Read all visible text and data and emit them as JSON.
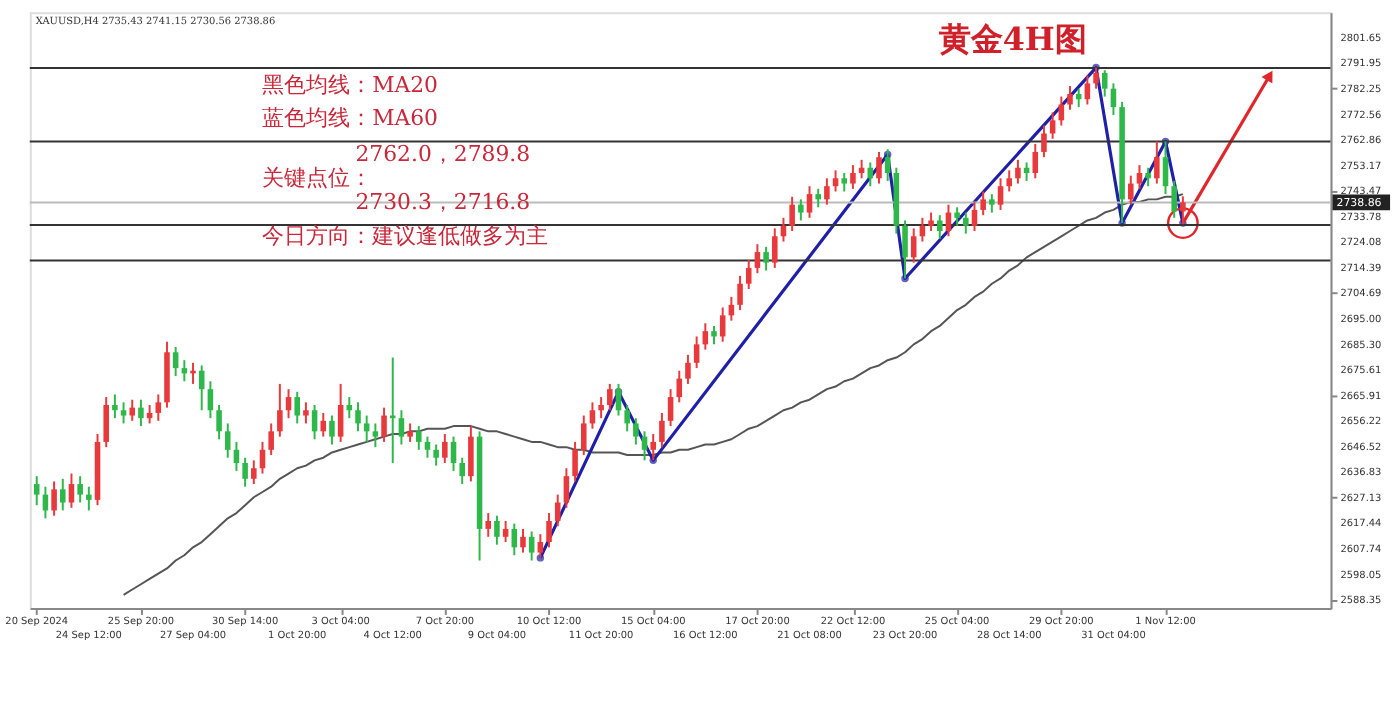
{
  "chart_data": {
    "type": "candlestick",
    "title": "黄金4H图",
    "annotations": [
      "XAUUSD,H4 2735.43 2741.15 2730.56 2738.86",
      "黑色均线：MA20",
      "蓝色均线：MA60",
      "2762.0，2789.8",
      "关键点位：",
      "2730.3，2716.8",
      "今日方向：建议逢低做多为主"
    ],
    "categories": [
      "20 Sep 2024",
      null,
      null,
      null,
      null,
      null,
      "24 Sep 12:00",
      null,
      null,
      null,
      null,
      null,
      "25 Sep 20:00",
      null,
      null,
      null,
      null,
      null,
      "27 Sep 04:00",
      null,
      null,
      null,
      null,
      null,
      "30 Sep 14:00",
      null,
      null,
      null,
      null,
      null,
      "1 Oct 20:00",
      null,
      null,
      null,
      null,
      "3 Oct 04:00",
      null,
      null,
      null,
      null,
      null,
      "4 Oct 12:00",
      null,
      null,
      null,
      null,
      null,
      "7 Oct 20:00",
      null,
      null,
      null,
      null,
      null,
      "9 Oct 04:00",
      null,
      null,
      null,
      null,
      null,
      "10 Oct 12:00",
      null,
      null,
      null,
      null,
      null,
      "11 Oct 20:00",
      null,
      null,
      null,
      null,
      null,
      "15 Oct 04:00",
      null,
      null,
      null,
      null,
      null,
      "16 Oct 12:00",
      null,
      null,
      null,
      null,
      null,
      "17 Oct 20:00",
      null,
      null,
      null,
      null,
      null,
      "21 Oct 08:00",
      null,
      null,
      null,
      null,
      "22 Oct 12:00",
      null,
      null,
      null,
      null,
      null,
      "23 Oct 20:00",
      null,
      null,
      null,
      null,
      null,
      "25 Oct 04:00",
      null,
      null,
      null,
      null,
      null,
      "28 Oct 14:00",
      null,
      null,
      null,
      null,
      null,
      "29 Oct 20:00",
      null,
      null,
      null,
      null,
      null,
      "31 Oct 04:00",
      null,
      null,
      null,
      null,
      null,
      "1 Nov 12:00",
      null,
      null,
      null,
      null,
      null,
      null,
      null,
      null,
      null,
      null,
      null,
      null
    ],
    "series": [
      {
        "type": "candlestick",
        "colors": [
          "#2fb84a",
          "#2fb84a",
          "#e8393c",
          "#2fb84a",
          "#e8393c",
          "#2fb84a",
          "#2fb84a",
          "#e8393c",
          "#e8393c",
          "#2fb84a",
          "#2fb84a",
          "#e8393c",
          "#2fb84a",
          "#e8393c",
          "#e8393c",
          "#e8393c",
          "#2fb84a",
          "#2fb84a",
          "#e8393c",
          "#2fb84a",
          "#2fb84a",
          "#2fb84a",
          "#2fb84a",
          "#2fb84a",
          "#2fb84a",
          "#e8393c",
          "#e8393c",
          "#e8393c",
          "#e8393c",
          "#e8393c",
          "#2fb84a",
          "#e8393c",
          "#2fb84a",
          "#e8393c",
          "#2fb84a",
          "#e8393c",
          "#2fb84a",
          "#2fb84a",
          "#2fb84a",
          "#2fb84a",
          "#e8393c",
          "#2fb84a",
          "#2fb84a",
          "#e8393c",
          "#2fb84a",
          "#2fb84a",
          "#2fb84a",
          "#e8393c",
          "#2fb84a",
          "#2fb84a",
          "#e8393c",
          "#2fb84a",
          "#e8393c",
          "#2fb84a",
          "#e8393c",
          "#2fb84a",
          "#e8393c",
          "#2fb84a",
          "#e8393c",
          "#e8393c",
          "#e8393c",
          "#e8393c",
          "#e8393c",
          "#e8393c",
          "#e8393c",
          "#e8393c",
          "#e8393c",
          "#2fb84a",
          "#2fb84a",
          "#2fb84a",
          "#2fb84a",
          "#e8393c",
          "#e8393c",
          "#e8393c",
          "#e8393c",
          "#e8393c",
          "#e8393c",
          "#e8393c",
          "#2fb84a",
          "#e8393c",
          "#e8393c",
          "#e8393c",
          "#e8393c",
          "#e8393c",
          "#2fb84a",
          "#e8393c",
          "#e8393c",
          "#e8393c",
          "#2fb84a",
          "#e8393c",
          "#2fb84a",
          "#e8393c",
          "#e8393c",
          "#2fb84a",
          "#e8393c",
          "#e8393c",
          "#2fb84a",
          "#e8393c",
          "#2fb84a",
          "#2fb84a",
          "#2fb84a",
          "#e8393c",
          "#e8393c",
          "#e8393c",
          "#2fb84a",
          "#e8393c",
          "#2fb84a",
          "#2fb84a",
          "#e8393c",
          "#e8393c",
          "#2fb84a",
          "#e8393c",
          "#e8393c",
          "#e8393c",
          "#2fb84a",
          "#e8393c",
          "#e8393c",
          "#e8393c",
          "#e8393c",
          "#e8393c",
          "#2fb84a",
          "#e8393c",
          "#e8393c",
          "#2fb84a",
          "#2fb84a",
          "#2fb84a",
          "#e8393c",
          "#e8393c",
          "#2fb84a",
          "#e8393c",
          "#2fb84a",
          "#2fb84a",
          "#e8393c",
          null,
          null,
          null,
          null,
          null,
          null,
          null,
          null,
          null,
          null
        ],
        "ohlc": [
          [
            2632,
            2635,
            2624,
            2628
          ],
          [
            2628,
            2631,
            2619,
            2622
          ],
          [
            2622,
            2633,
            2620,
            2630
          ],
          [
            2630,
            2634,
            2622,
            2625
          ],
          [
            2625,
            2636,
            2623,
            2632
          ],
          [
            2632,
            2635,
            2625,
            2628
          ],
          [
            2628,
            2631,
            2622,
            2626
          ],
          [
            2626,
            2651,
            2624,
            2648
          ],
          [
            2648,
            2665,
            2646,
            2662
          ],
          [
            2662,
            2666,
            2657,
            2660
          ],
          [
            2660,
            2663,
            2655,
            2658
          ],
          [
            2658,
            2664,
            2656,
            2661
          ],
          [
            2661,
            2664,
            2654,
            2657
          ],
          [
            2657,
            2662,
            2655,
            2659
          ],
          [
            2659,
            2666,
            2656,
            2663
          ],
          [
            2663,
            2686,
            2661,
            2682
          ],
          [
            2682,
            2684,
            2673,
            2676
          ],
          [
            2676,
            2679,
            2671,
            2674
          ],
          [
            2674,
            2678,
            2670,
            2675
          ],
          [
            2675,
            2677,
            2660,
            2668
          ],
          [
            2668,
            2671,
            2657,
            2660
          ],
          [
            2660,
            2662,
            2649,
            2652
          ],
          [
            2652,
            2655,
            2642,
            2645
          ],
          [
            2645,
            2648,
            2637,
            2640
          ],
          [
            2640,
            2642,
            2631,
            2634
          ],
          [
            2634,
            2641,
            2632,
            2638
          ],
          [
            2638,
            2648,
            2636,
            2645
          ],
          [
            2645,
            2655,
            2643,
            2652
          ],
          [
            2652,
            2670,
            2650,
            2660
          ],
          [
            2660,
            2668,
            2657,
            2665
          ],
          [
            2665,
            2667,
            2655,
            2658
          ],
          [
            2658,
            2663,
            2655,
            2660
          ],
          [
            2660,
            2662,
            2649,
            2652
          ],
          [
            2652,
            2659,
            2650,
            2656
          ],
          [
            2656,
            2658,
            2647,
            2650
          ],
          [
            2650,
            2670,
            2648,
            2662
          ],
          [
            2662,
            2665,
            2657,
            2660
          ],
          [
            2660,
            2663,
            2652,
            2655
          ],
          [
            2655,
            2658,
            2648,
            2652
          ],
          [
            2652,
            2655,
            2646,
            2650
          ],
          [
            2650,
            2661,
            2648,
            2658
          ],
          [
            2658,
            2680,
            2640,
            2657
          ],
          [
            2657,
            2660,
            2647,
            2650
          ],
          [
            2650,
            2655,
            2648,
            2652
          ],
          [
            2652,
            2654,
            2645,
            2648
          ],
          [
            2648,
            2650,
            2642,
            2645
          ],
          [
            2645,
            2647,
            2639,
            2642
          ],
          [
            2642,
            2651,
            2640,
            2648
          ],
          [
            2648,
            2650,
            2637,
            2640
          ],
          [
            2640,
            2642,
            2632,
            2635
          ],
          [
            2635,
            2654,
            2633,
            2650
          ],
          [
            2650,
            2652,
            2603,
            2615
          ],
          [
            2615,
            2621,
            2612,
            2618
          ],
          [
            2618,
            2620,
            2609,
            2612
          ],
          [
            2612,
            2618,
            2610,
            2615
          ],
          [
            2615,
            2617,
            2605,
            2608
          ],
          [
            2608,
            2615,
            2606,
            2612
          ],
          [
            2612,
            2614,
            2603,
            2606
          ],
          [
            2606,
            2613,
            2604,
            2610
          ],
          [
            2610,
            2621,
            2608,
            2618
          ],
          [
            2618,
            2628,
            2616,
            2625
          ],
          [
            2625,
            2638,
            2623,
            2635
          ],
          [
            2635,
            2648,
            2633,
            2645
          ],
          [
            2645,
            2658,
            2643,
            2655
          ],
          [
            2655,
            2663,
            2653,
            2660
          ],
          [
            2660,
            2665,
            2657,
            2662
          ],
          [
            2662,
            2670,
            2660,
            2668
          ],
          [
            2668,
            2670,
            2658,
            2660
          ],
          [
            2660,
            2662,
            2652,
            2655
          ],
          [
            2655,
            2657,
            2647,
            2650
          ],
          [
            2650,
            2652,
            2641,
            2645
          ],
          [
            2645,
            2651,
            2641,
            2648
          ],
          [
            2648,
            2659,
            2646,
            2656
          ],
          [
            2656,
            2668,
            2654,
            2665
          ],
          [
            2665,
            2675,
            2663,
            2672
          ],
          [
            2672,
            2681,
            2670,
            2678
          ],
          [
            2678,
            2688,
            2676,
            2685
          ],
          [
            2685,
            2693,
            2683,
            2690
          ],
          [
            2690,
            2692,
            2685,
            2688
          ],
          [
            2688,
            2699,
            2686,
            2696
          ],
          [
            2696,
            2703,
            2694,
            2700
          ],
          [
            2700,
            2711,
            2698,
            2708
          ],
          [
            2708,
            2717,
            2706,
            2714
          ],
          [
            2714,
            2723,
            2712,
            2720
          ],
          [
            2720,
            2722,
            2713,
            2716
          ],
          [
            2716,
            2729,
            2714,
            2726
          ],
          [
            2726,
            2733,
            2724,
            2730
          ],
          [
            2730,
            2741,
            2728,
            2738
          ],
          [
            2738,
            2740,
            2732,
            2735
          ],
          [
            2735,
            2745,
            2733,
            2742
          ],
          [
            2742,
            2744,
            2737,
            2740
          ],
          [
            2740,
            2748,
            2738,
            2745
          ],
          [
            2745,
            2751,
            2743,
            2748
          ],
          [
            2748,
            2750,
            2743,
            2746
          ],
          [
            2746,
            2753,
            2744,
            2750
          ],
          [
            2750,
            2755,
            2748,
            2752
          ],
          [
            2752,
            2754,
            2745,
            2748
          ],
          [
            2748,
            2758,
            2746,
            2756
          ],
          [
            2756,
            2759,
            2747,
            2750
          ],
          [
            2750,
            2752,
            2727,
            2730
          ],
          [
            2730,
            2732,
            2710,
            2718
          ],
          [
            2718,
            2729,
            2716,
            2726
          ],
          [
            2726,
            2733,
            2724,
            2730
          ],
          [
            2730,
            2735,
            2728,
            2732
          ],
          [
            2732,
            2734,
            2725,
            2728
          ],
          [
            2728,
            2738,
            2726,
            2735
          ],
          [
            2735,
            2737,
            2730,
            2733
          ],
          [
            2733,
            2735,
            2727,
            2730
          ],
          [
            2730,
            2739,
            2728,
            2736
          ],
          [
            2736,
            2743,
            2734,
            2740
          ],
          [
            2740,
            2742,
            2735,
            2738
          ],
          [
            2738,
            2748,
            2736,
            2745
          ],
          [
            2745,
            2751,
            2743,
            2748
          ],
          [
            2748,
            2755,
            2746,
            2752
          ],
          [
            2752,
            2754,
            2747,
            2750
          ],
          [
            2750,
            2761,
            2748,
            2758
          ],
          [
            2758,
            2768,
            2756,
            2765
          ],
          [
            2765,
            2773,
            2763,
            2770
          ],
          [
            2770,
            2779,
            2768,
            2776
          ],
          [
            2776,
            2783,
            2774,
            2780
          ],
          [
            2780,
            2782,
            2775,
            2778
          ],
          [
            2778,
            2787,
            2776,
            2784
          ],
          [
            2784,
            2790,
            2782,
            2788
          ],
          [
            2788,
            2789,
            2779,
            2782
          ],
          [
            2782,
            2784,
            2772,
            2775
          ],
          [
            2775,
            2777,
            2731,
            2740
          ],
          [
            2740,
            2749,
            2738,
            2746
          ],
          [
            2746,
            2753,
            2744,
            2750
          ],
          [
            2750,
            2752,
            2745,
            2748
          ],
          [
            2748,
            2762,
            2746,
            2756
          ],
          [
            2756,
            2762,
            2742,
            2745
          ],
          [
            2745,
            2747,
            2733,
            2735.43
          ],
          [
            2735.43,
            2741.15,
            2730.56,
            2738.86
          ],
          null,
          null,
          null,
          null,
          null,
          null,
          null,
          null,
          null,
          null
        ]
      },
      {
        "type": "line",
        "color": "#555555",
        "values": [
          null,
          null,
          null,
          null,
          null,
          null,
          null,
          null,
          null,
          null,
          2590,
          2592,
          2594,
          2596,
          2598,
          2600,
          2603,
          2605,
          2608,
          2610,
          2613,
          2616,
          2619,
          2621,
          2624,
          2627,
          2629,
          2631,
          2634,
          2636,
          2638,
          2639,
          2641,
          2642,
          2644,
          2645,
          2646,
          2647,
          2648,
          2649,
          2650,
          2651,
          2651,
          2652,
          2652,
          2653,
          2653,
          2653,
          2654,
          2654,
          2654,
          2653,
          2652,
          2652,
          2651,
          2650,
          2649,
          2648,
          2648,
          2647,
          2646,
          2646,
          2645,
          2645,
          2644,
          2644,
          2644,
          2644,
          2643,
          2643,
          2643,
          2643,
          2644,
          2644,
          2645,
          2645,
          2646,
          2647,
          2647,
          2648,
          2649,
          2651,
          2653,
          2654,
          2656,
          2658,
          2660,
          2661,
          2663,
          2664,
          2666,
          2668,
          2669,
          2671,
          2672,
          2674,
          2676,
          2677,
          2679,
          2680,
          2682,
          2685,
          2687,
          2690,
          2692,
          2695,
          2698,
          2700,
          2703,
          2705,
          2708,
          2710,
          2713,
          2715,
          2718,
          2720,
          2722,
          2724,
          2726,
          2728,
          2730,
          2732,
          2733,
          2735,
          2736,
          2738,
          2739,
          2739,
          2740,
          2740,
          2741,
          2741,
          2742,
          null,
          null,
          null,
          null,
          null,
          null,
          null,
          null,
          null,
          null
        ]
      },
      {
        "type": "line",
        "color": "#1f1fa8",
        "marker": "circle",
        "values": [
          null,
          null,
          null,
          null,
          null,
          null,
          null,
          null,
          null,
          null,
          null,
          null,
          null,
          null,
          null,
          null,
          null,
          null,
          null,
          null,
          null,
          null,
          null,
          null,
          null,
          null,
          null,
          null,
          null,
          null,
          null,
          null,
          null,
          null,
          null,
          null,
          null,
          null,
          null,
          null,
          null,
          null,
          null,
          null,
          null,
          null,
          null,
          null,
          null,
          null,
          null,
          null,
          null,
          null,
          null,
          null,
          null,
          null,
          2604,
          null,
          null,
          null,
          null,
          null,
          null,
          null,
          null,
          2667,
          null,
          null,
          null,
          2641,
          null,
          null,
          null,
          null,
          null,
          null,
          null,
          null,
          null,
          null,
          null,
          null,
          null,
          null,
          null,
          null,
          null,
          null,
          null,
          null,
          null,
          null,
          null,
          null,
          null,
          null,
          2757,
          null,
          2710,
          null,
          null,
          null,
          null,
          null,
          null,
          null,
          null,
          null,
          null,
          null,
          null,
          null,
          null,
          null,
          null,
          null,
          null,
          null,
          null,
          null,
          2790,
          null,
          null,
          2731,
          null,
          null,
          null,
          null,
          2762,
          null,
          2731,
          null,
          null,
          null,
          null,
          null,
          null,
          null,
          null,
          null,
          null
        ]
      },
      {
        "type": "line",
        "color": "#e0262b",
        "marker": "circle",
        "values": [
          null,
          null,
          null,
          null,
          null,
          null,
          null,
          null,
          null,
          null,
          null,
          null,
          null,
          null,
          null,
          null,
          null,
          null,
          null,
          null,
          null,
          null,
          null,
          null,
          null,
          null,
          null,
          null,
          null,
          null,
          null,
          null,
          null,
          null,
          null,
          null,
          null,
          null,
          null,
          null,
          null,
          null,
          null,
          null,
          null,
          null,
          null,
          null,
          null,
          null,
          null,
          null,
          null,
          null,
          null,
          null,
          null,
          null,
          null,
          null,
          null,
          null,
          null,
          null,
          null,
          null,
          null,
          null,
          null,
          null,
          null,
          null,
          null,
          null,
          null,
          null,
          null,
          null,
          null,
          null,
          null,
          null,
          null,
          null,
          null,
          null,
          null,
          null,
          null,
          null,
          null,
          null,
          null,
          null,
          null,
          null,
          null,
          null,
          null,
          null,
          null,
          null,
          null,
          null,
          null,
          null,
          null,
          null,
          null,
          null,
          null,
          null,
          null,
          null,
          null,
          null,
          null,
          null,
          null,
          null,
          null,
          null,
          null,
          null,
          null,
          null,
          null,
          null,
          null,
          null,
          null,
          null,
          2731,
          null,
          null,
          null,
          null,
          null,
          null,
          null,
          null,
          null,
          2787
        ]
      }
    ],
    "ylim": [
      2585,
      2811
    ],
    "yticks": [
      2588.35,
      2598.05,
      2607.74,
      2617.44,
      2627.13,
      2636.83,
      2646.52,
      2656.22,
      2665.91,
      2675.61,
      {
        "value": 2685.3,
        "label": "2685.30"
      },
      {
        "value": 2695,
        "label": "2695.00"
      },
      2704.69,
      2714.39,
      2724.08,
      2733.78,
      2743.47,
      2753.17,
      2762.86,
      2772.56,
      2782.25,
      2791.95,
      2801.65
    ],
    "ref_lines": [
      {
        "axis": "y",
        "value": 2789.8,
        "label": null,
        "color": "#333333"
      },
      {
        "axis": "y",
        "value": 2762.0,
        "label": null,
        "color": "#333333"
      },
      {
        "axis": "y",
        "value": 2730.3,
        "label": null,
        "color": "#333333"
      },
      {
        "axis": "y",
        "value": 2716.8,
        "label": null,
        "color": "#333333"
      },
      {
        "axis": "y",
        "value": 2738.86,
        "label": "2738.86",
        "color": "#bbbbbb"
      }
    ],
    "grid": false
  }
}
